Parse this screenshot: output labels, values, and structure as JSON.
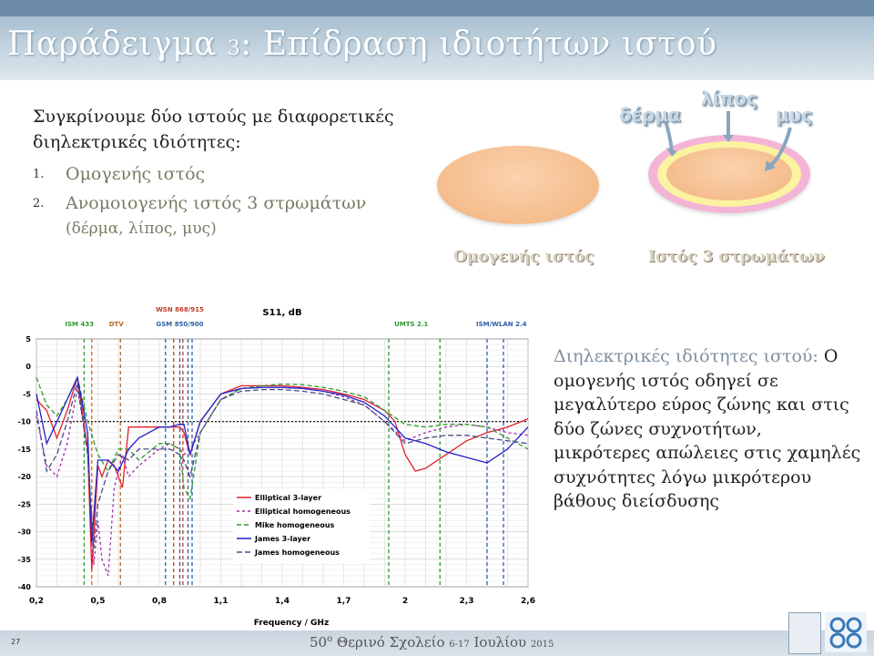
{
  "slide": {
    "title_main": "Παράδειγμα ",
    "title_num": "3",
    "title_rest": ": Επίδραση ιδιοτήτων ιστού",
    "intro": "Συγκρίνουμε δύο ιστούς με διαφορετικές διηλεκτρικές ιδιότητες:",
    "list": [
      {
        "num": "1.",
        "text": "Ομογενής ιστός",
        "sub": ""
      },
      {
        "num": "2.",
        "text": "Ανομοιογενής ιστός 3 στρωμάτων",
        "sub": "(δέρμα, λίπος, μυς)"
      }
    ],
    "fig_labels": {
      "skin": "δέρμα",
      "fat": "λίπος",
      "muscle": "μυς"
    },
    "caption_hom": "Ομογενής ιστός",
    "caption_3l": "Ιστός 3 στρωμάτων",
    "right_heading": "Διηλεκτρικές ιδιότητες ιστού:",
    "right_body": " Ο ομογενής ιστός οδηγεί σε μεγαλύτερο εύρος ζώνης και στις δύο ζώνες συχνοτήτων, μικρότερες απώλειες στις χαμηλές συχνότητες λόγω μικρότερου βάθους διείσδυσης",
    "footer_pre": "50",
    "footer_sup": "ο",
    "footer_mid": " Θερινό Σχολείο ",
    "footer_dates": "6-17",
    "footer_month": " Ιουλίου ",
    "footer_year": "2015",
    "page_number": "27",
    "colors": {
      "accent": "#6c8ba6",
      "title_bg": "#a7bfd0"
    }
  },
  "chart_data": {
    "type": "line",
    "title": "S11, dB",
    "xlabel": "Frequency / GHz",
    "ylabel": "",
    "xlim": [
      0.2,
      2.6
    ],
    "ylim": [
      -40,
      5
    ],
    "xticks": [
      0.2,
      0.5,
      0.8,
      1.1,
      1.4,
      1.7,
      2,
      2.3,
      2.6
    ],
    "xtick_labels": [
      "0,2",
      "0,5",
      "0,8",
      "1,1",
      "1,4",
      "1,7",
      "2",
      "2,3",
      "2,6"
    ],
    "yticks": [
      5,
      0,
      -5,
      -10,
      -15,
      -20,
      -25,
      -30,
      -35,
      -40
    ],
    "reference_line": -10,
    "grid": true,
    "legend_position": "lower-middle",
    "band_markers": [
      {
        "x": 0.433,
        "color": "#2e9a2e",
        "label": "ISM 433"
      },
      {
        "x": 0.47,
        "color": "#e07a1f",
        "label": ""
      },
      {
        "x": 0.47,
        "color": "#e07a1f",
        "label": ""
      },
      {
        "x": 0.61,
        "color": "#b5651d",
        "label": "DTV"
      },
      {
        "x": 0.83,
        "color": "#2f5fa8",
        "label": ""
      },
      {
        "x": 0.87,
        "color": "#c0392b",
        "label": "WSN 868/915"
      },
      {
        "x": 0.9,
        "color": "#2f5fa8",
        "label": "GSM 850/900"
      },
      {
        "x": 0.915,
        "color": "#c0392b",
        "label": ""
      },
      {
        "x": 0.94,
        "color": "#2f5fa8",
        "label": ""
      },
      {
        "x": 0.96,
        "color": "#2f5fa8",
        "label": ""
      },
      {
        "x": 1.92,
        "color": "#2e9a2e",
        "label": "UMTS 2.1"
      },
      {
        "x": 2.17,
        "color": "#2e9a2e",
        "label": ""
      },
      {
        "x": 2.4,
        "color": "#2f5fa8",
        "label": "ISM/WLAN 2.4"
      },
      {
        "x": 2.48,
        "color": "#2f5fa8",
        "label": ""
      }
    ],
    "top_labels": [
      {
        "text": "ISM 433",
        "x": 0.41,
        "row": 2,
        "color": "#2e9a2e"
      },
      {
        "text": "DTV",
        "x": 0.59,
        "row": 2,
        "color": "#b5651d"
      },
      {
        "text": "WSN 868/915",
        "x": 0.9,
        "row": 1,
        "color": "#c0392b"
      },
      {
        "text": "GSM 850/900",
        "x": 0.9,
        "row": 2,
        "color": "#2f5fa8"
      },
      {
        "text": "UMTS 2.1",
        "x": 2.03,
        "row": 2,
        "color": "#2e9a2e"
      },
      {
        "text": "ISM/WLAN 2.4",
        "x": 2.47,
        "row": 2,
        "color": "#2f5fa8"
      }
    ],
    "series": [
      {
        "name": "Elliptical 3-layer",
        "color": "#e0212d",
        "dash": "",
        "x": [
          0.2,
          0.25,
          0.3,
          0.35,
          0.4,
          0.45,
          0.47,
          0.5,
          0.52,
          0.55,
          0.58,
          0.62,
          0.65,
          0.7,
          0.8,
          0.85,
          0.9,
          0.92,
          0.95,
          1.0,
          1.1,
          1.2,
          1.3,
          1.4,
          1.5,
          1.6,
          1.7,
          1.8,
          1.9,
          1.95,
          2.0,
          2.05,
          2.1,
          2.2,
          2.3,
          2.4,
          2.5,
          2.6
        ],
        "y": [
          -6,
          -8,
          -13,
          -8,
          -2,
          -15,
          -37,
          -18,
          -20,
          -17,
          -18,
          -22,
          -11,
          -11,
          -11,
          -11,
          -11,
          -12,
          -16,
          -10,
          -5,
          -3.5,
          -3.5,
          -3.5,
          -3.8,
          -4.2,
          -5,
          -6,
          -8,
          -10,
          -16,
          -19,
          -18.5,
          -16,
          -13.5,
          -12,
          -11,
          -9.5
        ]
      },
      {
        "name": "Elliptical homogeneous",
        "color": "#9b2fa8",
        "dash": "3,3",
        "x": [
          0.2,
          0.25,
          0.3,
          0.35,
          0.4,
          0.45,
          0.48,
          0.5,
          0.52,
          0.55,
          0.58,
          0.62,
          0.65,
          0.7,
          0.8,
          0.85,
          0.9,
          0.92,
          0.95,
          1.0,
          1.1,
          1.2,
          1.3,
          1.4,
          1.5,
          1.6,
          1.7,
          1.8,
          1.9,
          2.0,
          2.1,
          2.2,
          2.3,
          2.4,
          2.5,
          2.6
        ],
        "y": [
          -9,
          -18,
          -20,
          -14,
          -4,
          -15,
          -36,
          -28,
          -35,
          -38,
          -22,
          -16,
          -20,
          -18,
          -15,
          -14,
          -15,
          -16,
          -15,
          -12,
          -6,
          -4,
          -3.8,
          -3.8,
          -4,
          -4.5,
          -5.5,
          -7,
          -10,
          -13.5,
          -12,
          -11,
          -10.5,
          -11,
          -12,
          -12.5
        ]
      },
      {
        "name": "Mike homogeneous",
        "color": "#2e9a2e",
        "dash": "5,3",
        "x": [
          0.2,
          0.25,
          0.3,
          0.35,
          0.4,
          0.45,
          0.5,
          0.55,
          0.6,
          0.65,
          0.7,
          0.8,
          0.85,
          0.9,
          0.92,
          0.95,
          1.0,
          1.1,
          1.2,
          1.3,
          1.4,
          1.5,
          1.6,
          1.7,
          1.8,
          1.9,
          2.0,
          2.1,
          2.2,
          2.3,
          2.4,
          2.5,
          2.6
        ],
        "y": [
          -2,
          -7,
          -9,
          -6,
          -2,
          -10,
          -16,
          -19,
          -15,
          -15,
          -17,
          -14,
          -14,
          -15,
          -22,
          -24,
          -12,
          -6,
          -4,
          -3.5,
          -3.2,
          -3.3,
          -3.8,
          -4.5,
          -5.5,
          -8,
          -10.5,
          -11,
          -10.5,
          -10.5,
          -11,
          -13,
          -15
        ]
      },
      {
        "name": "James 3-layer",
        "color": "#2222cc",
        "dash": "",
        "x": [
          0.2,
          0.25,
          0.3,
          0.35,
          0.4,
          0.45,
          0.47,
          0.5,
          0.55,
          0.6,
          0.65,
          0.7,
          0.8,
          0.85,
          0.9,
          0.92,
          0.95,
          1.0,
          1.1,
          1.2,
          1.3,
          1.4,
          1.5,
          1.6,
          1.7,
          1.8,
          1.9,
          2.0,
          2.1,
          2.2,
          2.3,
          2.4,
          2.5,
          2.6
        ],
        "y": [
          -5,
          -14,
          -10,
          -6,
          -2,
          -12,
          -32,
          -17,
          -17,
          -19,
          -15,
          -13,
          -11,
          -11,
          -10.5,
          -10.5,
          -16,
          -10,
          -5,
          -4,
          -3.8,
          -3.8,
          -4,
          -4.5,
          -5.2,
          -6.5,
          -9,
          -13,
          -14,
          -15.5,
          -16.5,
          -17.5,
          -15,
          -11
        ]
      },
      {
        "name": "James homogeneous",
        "color": "#4b4b88",
        "dash": "6,3",
        "x": [
          0.2,
          0.25,
          0.3,
          0.35,
          0.4,
          0.45,
          0.48,
          0.5,
          0.55,
          0.6,
          0.65,
          0.7,
          0.8,
          0.85,
          0.9,
          0.92,
          0.95,
          1.0,
          1.1,
          1.2,
          1.3,
          1.4,
          1.5,
          1.6,
          1.7,
          1.8,
          1.9,
          2.0,
          2.1,
          2.2,
          2.3,
          2.4,
          2.5,
          2.6
        ],
        "y": [
          -8,
          -19,
          -16,
          -10,
          -3,
          -16,
          -33,
          -25,
          -19,
          -16,
          -17,
          -15,
          -15,
          -15,
          -16,
          -17,
          -20,
          -12,
          -6,
          -4.5,
          -4.2,
          -4.2,
          -4.5,
          -5,
          -6,
          -7,
          -10,
          -14,
          -13,
          -12.5,
          -12.5,
          -13,
          -13.5,
          -14
        ]
      }
    ]
  }
}
